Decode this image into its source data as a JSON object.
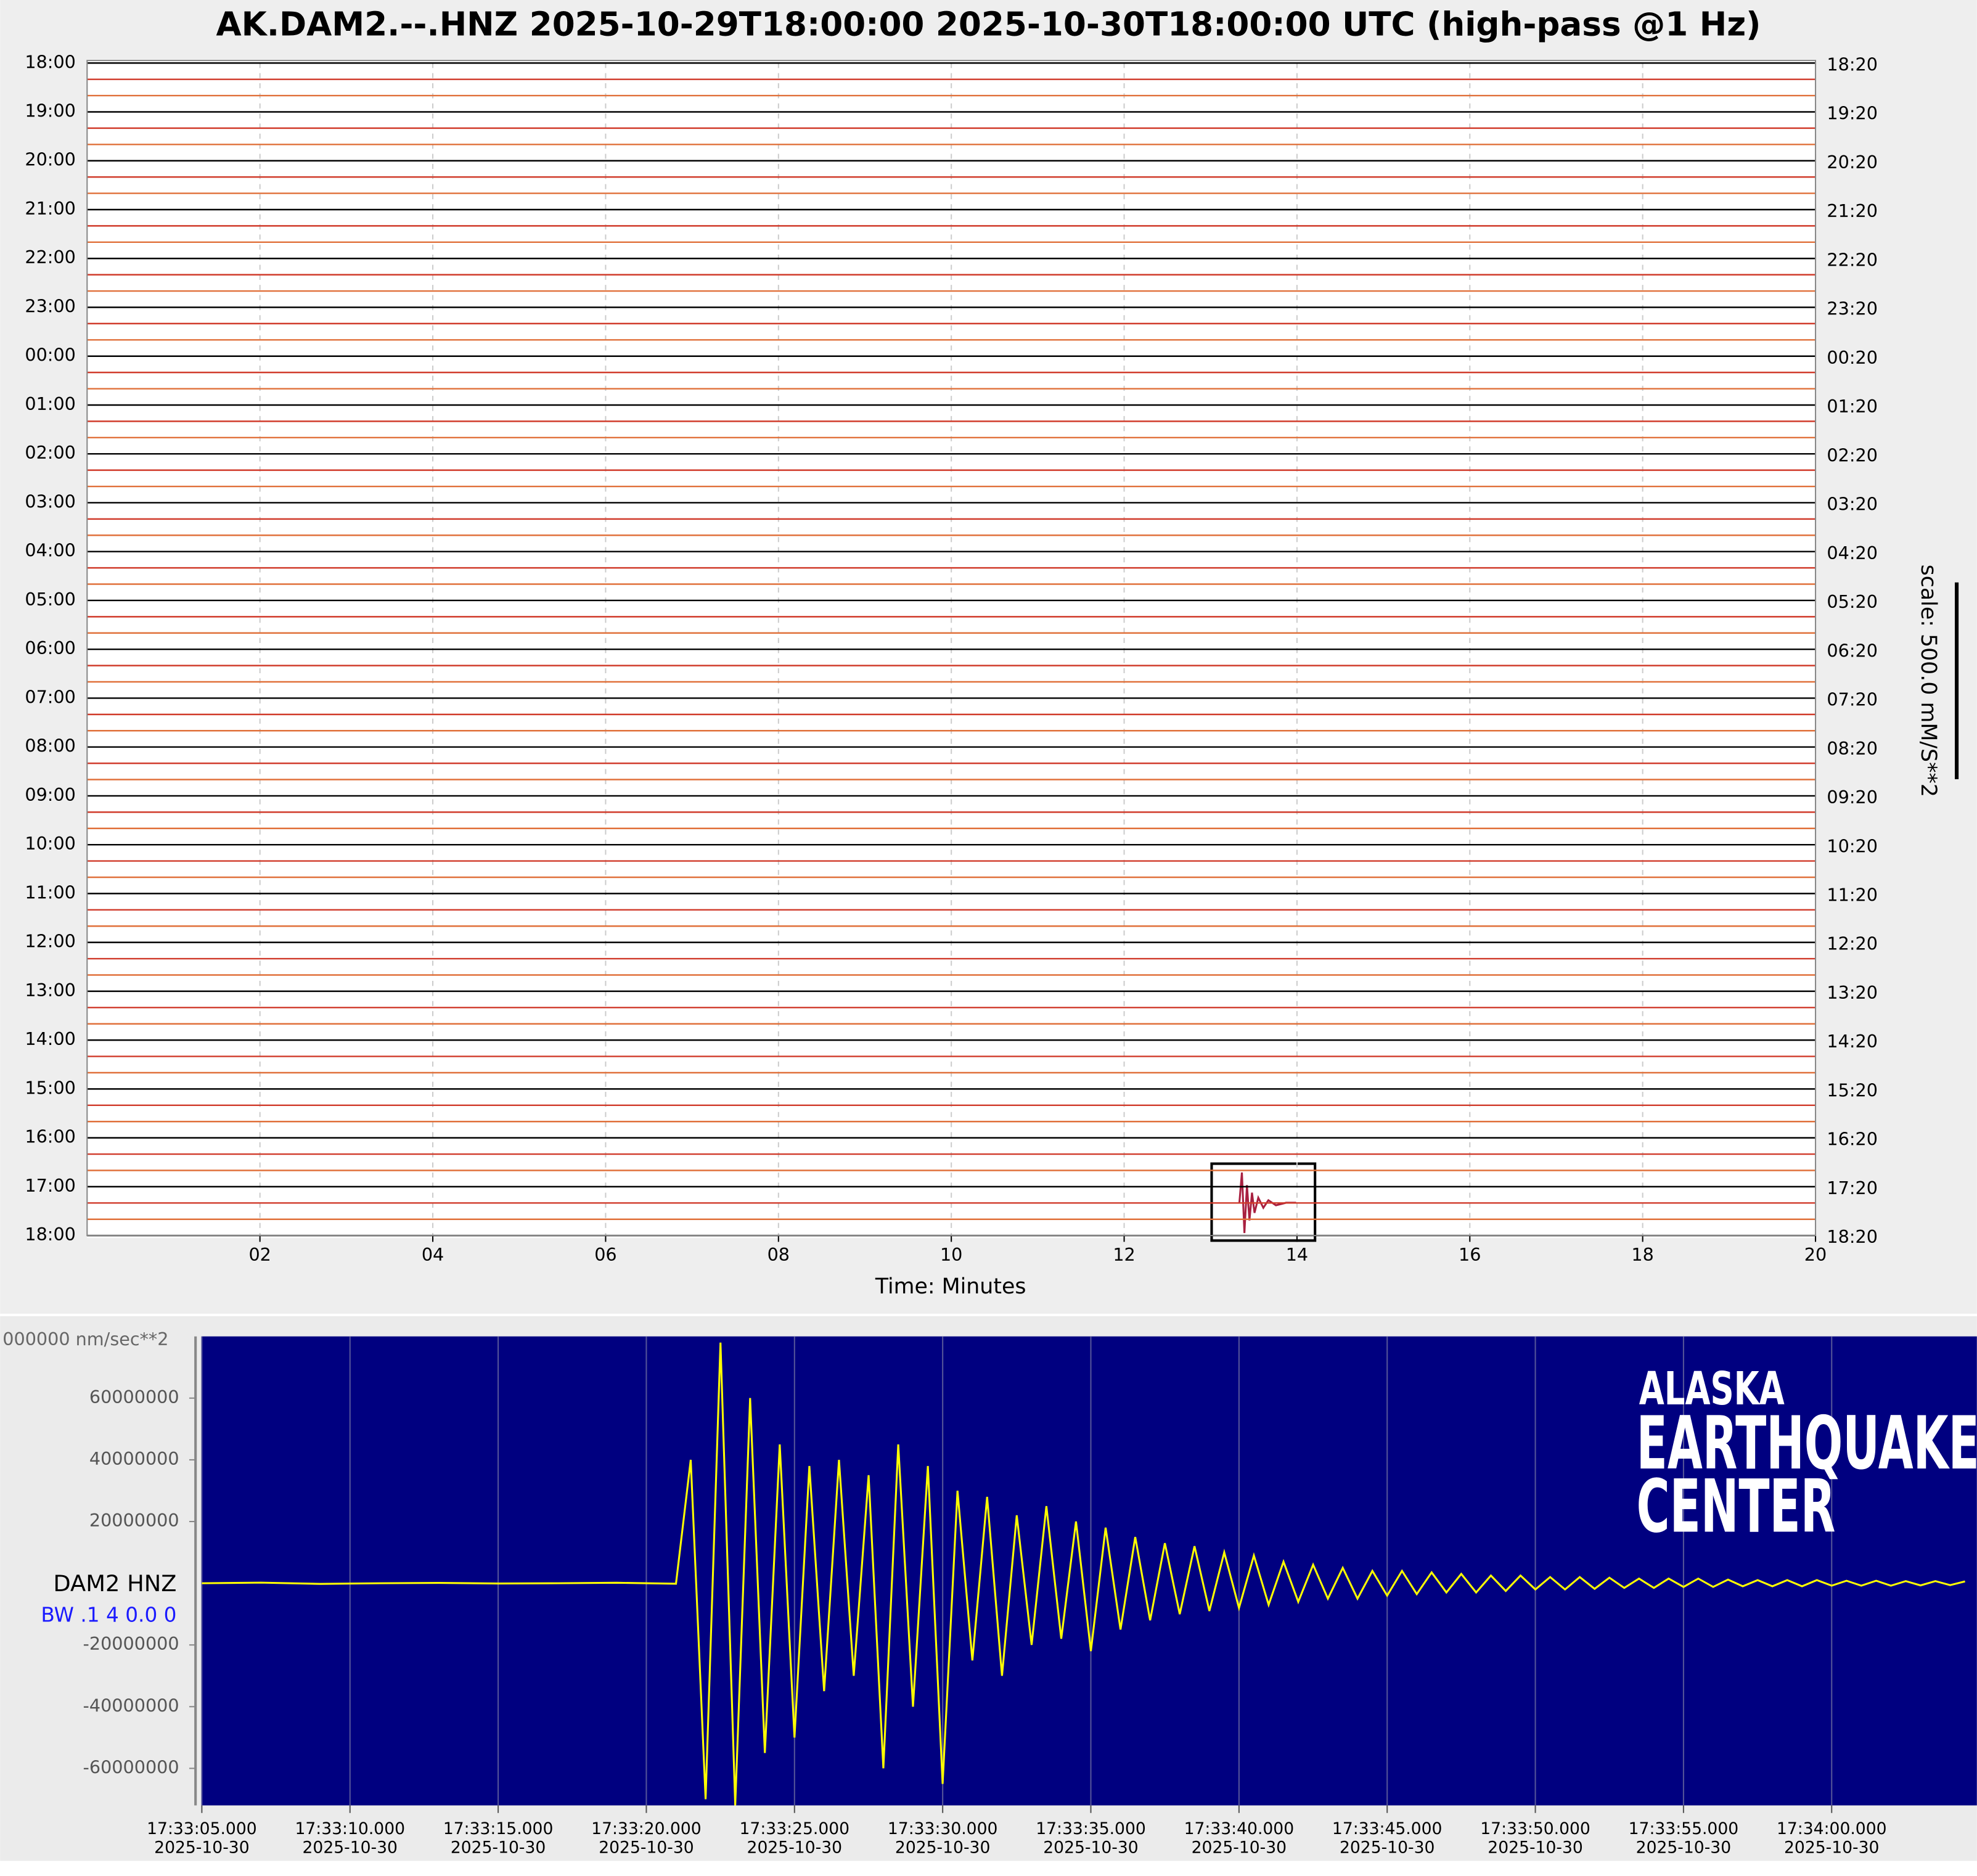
{
  "chart_data": [
    {
      "type": "helicorder",
      "title": "AK.DAM2.--.HNZ 2025-10-29T18:00:00 2025-10-30T18:00:00 UTC (high-pass @1 Hz)",
      "xlabel": "Time: Minutes",
      "xlim": [
        0,
        20
      ],
      "xticks": [
        {
          "value": 2,
          "label": "02"
        },
        {
          "value": 4,
          "label": "04"
        },
        {
          "value": 6,
          "label": "06"
        },
        {
          "value": 8,
          "label": "08"
        },
        10,
        12,
        14,
        16,
        18,
        20
      ],
      "grid": true,
      "categories": [
        "18:00",
        "19:00",
        "20:00",
        "21:00",
        "22:00",
        "23:00",
        "00:00",
        "01:00",
        "02:00",
        "03:00",
        "04:00",
        "05:00",
        "06:00",
        "07:00",
        "08:00",
        "09:00",
        "10:00",
        "11:00",
        "12:00",
        "13:00",
        "14:00",
        "15:00",
        "16:00",
        "17:00",
        "18:00"
      ],
      "right_categories": [
        "18:20",
        "19:20",
        "20:20",
        "21:20",
        "22:20",
        "23:20",
        "00:20",
        "01:20",
        "02:20",
        "03:20",
        "04:20",
        "05:20",
        "06:20",
        "07:20",
        "08:20",
        "09:20",
        "10:20",
        "11:20",
        "12:20",
        "13:20",
        "14:20",
        "15:20",
        "16:20",
        "17:20",
        "18:20"
      ],
      "scale_label": "scale: 500.0 mM/S**2",
      "trace_colors": [
        "#000000",
        "#d03a2a",
        "#e0703a"
      ]
    },
    {
      "type": "line",
      "ylabel": "000000 nm/sec**2",
      "trace_label": "DAM2 HNZ",
      "filter_label": "BW .1 4 0.0 0",
      "logo": [
        "ALASKA",
        "EARTHQUAKE",
        "CENTER"
      ],
      "xlim": [
        5,
        64.9
      ],
      "xticks": [
        {
          "value": 5,
          "label": "17:33:05.000"
        },
        {
          "value": 10,
          "label": "17:33:10.000"
        },
        {
          "value": 15,
          "label": "17:33:15.000"
        },
        {
          "value": 20,
          "label": "17:33:20.000"
        },
        {
          "value": 25,
          "label": "17:33:25.000"
        },
        {
          "value": 30,
          "label": "17:33:30.000"
        },
        {
          "value": 35,
          "label": "17:33:35.000"
        },
        {
          "value": 40,
          "label": "17:33:40.000"
        },
        {
          "value": 45,
          "label": "17:33:45.000"
        },
        {
          "value": 50,
          "label": "17:33:50.000"
        },
        {
          "value": 55,
          "label": "17:33:55.000"
        },
        {
          "value": 60,
          "label": "17:34:00.000"
        }
      ],
      "xtick_dates": [
        "2025-10-30",
        "2025-10-30",
        "2025-10-30",
        "2025-10-30",
        "2025-10-30",
        "2025-10-30",
        "2025-10-30",
        "2025-10-30",
        "2025-10-30",
        "2025-10-30",
        "2025-10-30",
        "2025-10-30"
      ],
      "ylim": [
        -72000000,
        80000000
      ],
      "yticks": [
        60000000,
        40000000,
        20000000,
        -20000000,
        -40000000,
        -60000000
      ],
      "grid": true,
      "color": "#ffff00",
      "x": [
        5,
        7,
        9,
        11,
        13,
        15,
        17,
        19,
        21,
        21.5,
        22,
        22.5,
        23,
        23.5,
        24,
        24.5,
        25,
        25.5,
        26,
        26.5,
        27,
        27.5,
        28,
        28.5,
        29,
        29.5,
        30,
        30.5,
        31,
        31.5,
        32,
        32.5,
        33,
        33.5,
        34,
        34.5,
        35,
        35.5,
        36,
        36.5,
        37,
        37.5,
        38,
        38.5,
        39,
        39.5,
        40,
        40.5,
        41,
        41.5,
        42,
        42.5,
        43,
        43.5,
        44,
        44.5,
        45,
        45.5,
        46,
        46.5,
        47,
        47.5,
        48,
        48.5,
        49,
        49.5,
        50,
        50.5,
        51,
        51.5,
        52,
        52.5,
        53,
        53.5,
        54,
        54.5,
        55,
        55.5,
        56,
        56.5,
        57,
        57.5,
        58,
        58.5,
        59,
        59.5,
        60,
        60.5,
        61,
        61.5,
        62,
        62.5,
        63,
        63.5,
        64,
        64.5
      ],
      "values": [
        0,
        200000,
        -200000,
        0,
        100000,
        -100000,
        0,
        150000,
        -150000,
        40000000,
        -70000000,
        78000000,
        -72000000,
        60000000,
        -55000000,
        45000000,
        -50000000,
        38000000,
        -35000000,
        40000000,
        -30000000,
        35000000,
        -60000000,
        45000000,
        -40000000,
        38000000,
        -65000000,
        30000000,
        -25000000,
        28000000,
        -30000000,
        22000000,
        -20000000,
        25000000,
        -18000000,
        20000000,
        -22000000,
        18000000,
        -15000000,
        15000000,
        -12000000,
        13000000,
        -10000000,
        12000000,
        -9000000,
        10000000,
        -8000000,
        9000000,
        -7000000,
        7000000,
        -6000000,
        6000000,
        -5000000,
        5000000,
        -5000000,
        4000000,
        -4000000,
        4000000,
        -3500000,
        3500000,
        -3000000,
        3000000,
        -3000000,
        2500000,
        -2500000,
        2500000,
        -2000000,
        2000000,
        -2000000,
        2000000,
        -1800000,
        1800000,
        -1500000,
        1500000,
        -1500000,
        1500000,
        -1200000,
        1500000,
        -1200000,
        1200000,
        -1000000,
        1000000,
        -1000000,
        1000000,
        -1000000,
        1000000,
        -800000,
        800000,
        -800000,
        800000,
        -800000,
        700000,
        -700000,
        700000,
        -600000,
        600000
      ]
    }
  ]
}
